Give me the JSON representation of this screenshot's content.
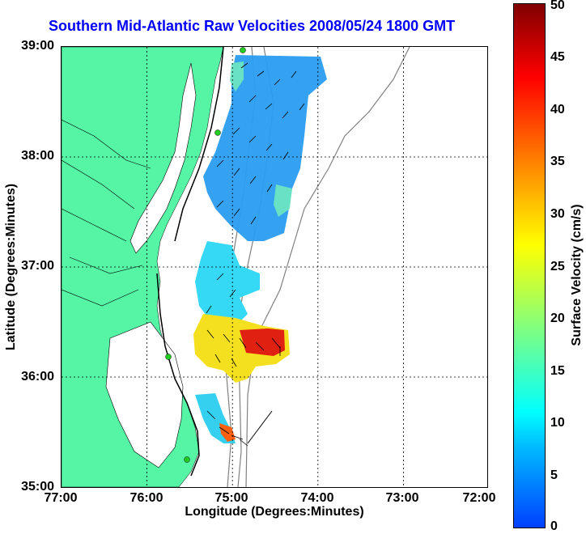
{
  "title": "Southern Mid-Atlantic Raw Velocities 2008/05/24 1800 GMT",
  "xlabel": "Longitude (Degrees:Minutes)",
  "ylabel": "Latitude (Degrees:Minutes)",
  "colorbar_label": "Surface Velocity (cm/s)",
  "x_ticks": [
    "77:00",
    "76:00",
    "75:00",
    "74:00",
    "73:00",
    "72:00"
  ],
  "y_ticks": [
    "39:00",
    "38:00",
    "37:00",
    "36:00",
    "35:00"
  ],
  "colorbar_ticks": [
    "50",
    "45",
    "40",
    "35",
    "30",
    "25",
    "20",
    "15",
    "10",
    "5",
    "0"
  ],
  "colors": {
    "land": "#55f5a5",
    "title": "#0000ff",
    "grid": "#000000",
    "bathymetry": "#808080",
    "station": "#22cc22"
  },
  "map": {
    "lon_range": [
      -77,
      -72
    ],
    "lat_range": [
      35,
      39
    ],
    "velocity_range_cm_s": [
      0,
      50
    ]
  }
}
